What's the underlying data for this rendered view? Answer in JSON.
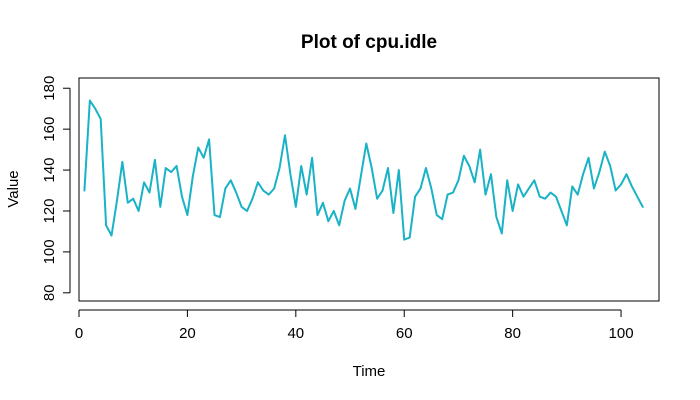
{
  "chart_data": {
    "type": "line",
    "title": "Plot of cpu.idle",
    "xlabel": "Time",
    "ylabel": "Value",
    "xlim": [
      0,
      107
    ],
    "ylim": [
      76,
      185
    ],
    "x_ticks": [
      0,
      20,
      40,
      60,
      80,
      100
    ],
    "y_ticks": [
      80,
      100,
      120,
      140,
      160,
      180
    ],
    "grid": false,
    "line_color": "#1ab2c6",
    "series": [
      {
        "x": [
          1,
          2,
          3,
          4,
          5,
          6,
          7,
          8,
          9,
          10,
          11,
          12,
          13,
          14,
          15,
          16,
          17,
          18,
          19,
          20,
          21,
          22,
          23,
          24,
          25,
          26,
          27,
          28,
          29,
          30,
          31,
          32,
          33,
          34,
          35,
          36,
          37,
          38,
          39,
          40,
          41,
          42,
          43,
          44,
          45,
          46,
          47,
          48,
          49,
          50,
          51,
          52,
          53,
          54,
          55,
          56,
          57,
          58,
          59,
          60,
          61,
          62,
          63,
          64,
          65,
          66,
          67,
          68,
          69,
          70,
          71,
          72,
          73,
          74,
          75,
          76,
          77,
          78,
          79,
          80,
          81,
          82,
          83,
          84,
          85,
          86,
          87,
          88,
          89,
          90,
          91,
          92,
          93,
          94,
          95,
          96,
          97,
          98,
          99,
          100,
          101,
          102,
          103,
          104
        ],
        "values": [
          130,
          174,
          170,
          165,
          113,
          108,
          125,
          144,
          124,
          126,
          120,
          134,
          129,
          145,
          122,
          141,
          139,
          142,
          127,
          118,
          137,
          151,
          146,
          155,
          118,
          117,
          131,
          135,
          129,
          122,
          120,
          126,
          134,
          130,
          128,
          131,
          141,
          157,
          138,
          122,
          142,
          128,
          146,
          118,
          124,
          115,
          120,
          113,
          125,
          131,
          121,
          137,
          153,
          141,
          126,
          130,
          141,
          119,
          140,
          106,
          107,
          127,
          131,
          141,
          131,
          118,
          116,
          128,
          129,
          135,
          147,
          142,
          134,
          150,
          128,
          138,
          117,
          109,
          135,
          120,
          133,
          127,
          131,
          135,
          127,
          126,
          129,
          127,
          120,
          113,
          132,
          128,
          138,
          146,
          131,
          139,
          149,
          142,
          130,
          133,
          138,
          132,
          127,
          122
        ]
      }
    ]
  }
}
